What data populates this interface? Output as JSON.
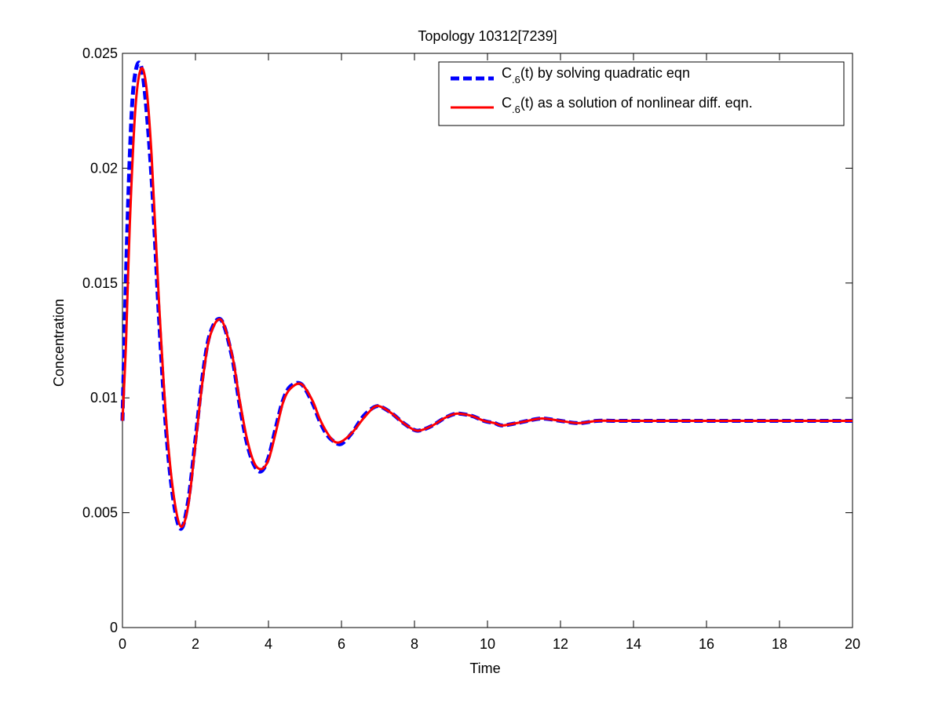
{
  "chart_data": {
    "type": "line",
    "title": "Topology 10312[7239]",
    "xlabel": "Time",
    "ylabel": "Concentration",
    "xlim": [
      0,
      20
    ],
    "ylim": [
      0,
      0.025
    ],
    "x_ticks": [
      "0",
      "2",
      "4",
      "6",
      "8",
      "10",
      "12",
      "14",
      "16",
      "18",
      "20"
    ],
    "y_ticks": [
      "0",
      "0.005",
      "0.01",
      "0.015",
      "0.02",
      "0.025"
    ],
    "grid": false,
    "legend_position": "top-right",
    "series": [
      {
        "name": "C.6(t) by solving quadratic eqn",
        "legend_main": "C",
        "legend_sub": ".6",
        "legend_rest": "(t) by solving quadratic eqn",
        "color": "#0000ff",
        "style": "dashed",
        "x": [
          0,
          0.1,
          0.2,
          0.3,
          0.45,
          0.6,
          0.8,
          1.0,
          1.2,
          1.4,
          1.6,
          1.8,
          2.0,
          2.2,
          2.4,
          2.7,
          3.0,
          3.2,
          3.4,
          3.6,
          3.8,
          4.0,
          4.2,
          4.4,
          4.6,
          4.9,
          5.2,
          5.4,
          5.6,
          5.8,
          6.0,
          6.3,
          6.6,
          6.9,
          7.1,
          7.4,
          7.7,
          8.0,
          8.2,
          8.5,
          8.8,
          9.1,
          9.3,
          9.6,
          9.9,
          10.2,
          10.4,
          10.8,
          11.1,
          11.5,
          12.0,
          12.5,
          13.0,
          13.5,
          14.0,
          15.0,
          16.0,
          17.0,
          18.0,
          19.0,
          20.0
        ],
        "y": [
          0.009,
          0.0155,
          0.0205,
          0.0235,
          0.0246,
          0.0235,
          0.0195,
          0.0135,
          0.0085,
          0.0055,
          0.0043,
          0.0055,
          0.0082,
          0.011,
          0.0128,
          0.0134,
          0.0118,
          0.0098,
          0.0081,
          0.0071,
          0.0068,
          0.0074,
          0.0087,
          0.0099,
          0.0105,
          0.0106,
          0.0098,
          0.009,
          0.0084,
          0.0081,
          0.008,
          0.0085,
          0.0092,
          0.0096,
          0.0096,
          0.0093,
          0.0089,
          0.0086,
          0.0086,
          0.0088,
          0.0091,
          0.0093,
          0.0093,
          0.0092,
          0.009,
          0.0089,
          0.0088,
          0.0089,
          0.009,
          0.0091,
          0.009,
          0.0089,
          0.009,
          0.009,
          0.009,
          0.009,
          0.009,
          0.009,
          0.009,
          0.009,
          0.009
        ]
      },
      {
        "name": "C.6(t) as a solution of nonlinear diff. eqn.",
        "legend_main": "C",
        "legend_sub": ".6",
        "legend_rest": "(t) as a solution of nonlinear diff. eqn.",
        "color": "#ff0000",
        "style": "solid",
        "x": [
          0,
          0.1,
          0.2,
          0.35,
          0.5,
          0.65,
          0.8,
          1.0,
          1.2,
          1.4,
          1.6,
          1.8,
          2.0,
          2.2,
          2.4,
          2.7,
          3.0,
          3.2,
          3.4,
          3.6,
          3.8,
          4.0,
          4.2,
          4.4,
          4.6,
          4.9,
          5.2,
          5.4,
          5.6,
          5.8,
          6.0,
          6.3,
          6.6,
          6.9,
          7.1,
          7.4,
          7.7,
          8.0,
          8.2,
          8.5,
          8.8,
          9.1,
          9.3,
          9.6,
          9.9,
          10.2,
          10.4,
          10.8,
          11.1,
          11.5,
          12.0,
          12.5,
          13.0,
          13.5,
          14.0,
          15.0,
          16.0,
          17.0,
          18.0,
          19.0,
          20.0
        ],
        "y": [
          0.009,
          0.0125,
          0.0175,
          0.0225,
          0.0243,
          0.0236,
          0.0205,
          0.0142,
          0.009,
          0.0058,
          0.0044,
          0.0053,
          0.008,
          0.0108,
          0.0127,
          0.0134,
          0.0119,
          0.01,
          0.0083,
          0.0072,
          0.0069,
          0.0073,
          0.0085,
          0.0098,
          0.0104,
          0.0106,
          0.0099,
          0.0091,
          0.0085,
          0.0081,
          0.0081,
          0.0085,
          0.0091,
          0.0096,
          0.0096,
          0.0093,
          0.0089,
          0.0086,
          0.0086,
          0.0088,
          0.0091,
          0.0093,
          0.0093,
          0.0092,
          0.009,
          0.0089,
          0.0088,
          0.0089,
          0.009,
          0.0091,
          0.009,
          0.0089,
          0.009,
          0.009,
          0.009,
          0.009,
          0.009,
          0.009,
          0.009,
          0.009,
          0.009
        ]
      }
    ]
  }
}
